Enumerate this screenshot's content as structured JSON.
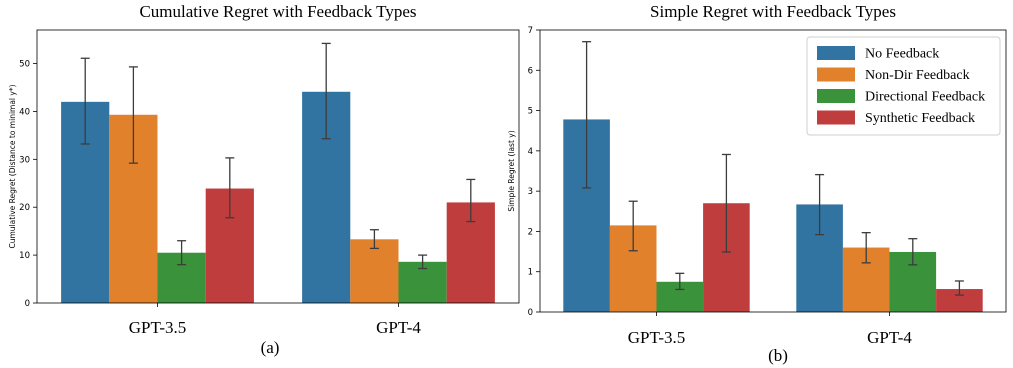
{
  "chart_data": [
    {
      "type": "bar",
      "title": "Cumulative Regret with Feedback Types",
      "xlabel": "",
      "ylabel": "Cumulative Regret (Distance to minimal y*)",
      "caption": "(a)",
      "categories": [
        "GPT-3.5",
        "GPT-4"
      ],
      "ylim": [
        0,
        57
      ],
      "yticks": [
        0,
        10,
        20,
        30,
        40,
        50
      ],
      "grid": false,
      "legend": "none",
      "series": [
        {
          "name": "No Feedback",
          "color": "#3274a1",
          "values": [
            42.0,
            44.1
          ],
          "err_low": [
            33.2,
            34.3
          ],
          "err_high": [
            51.1,
            54.2
          ]
        },
        {
          "name": "Non-Dir Feedback",
          "color": "#e1812c",
          "values": [
            39.3,
            13.3
          ],
          "err_low": [
            29.2,
            11.4
          ],
          "err_high": [
            49.3,
            15.3
          ]
        },
        {
          "name": "Directional Feedback",
          "color": "#3a923a",
          "values": [
            10.5,
            8.6
          ],
          "err_low": [
            8.0,
            7.2
          ],
          "err_high": [
            13.0,
            10.0
          ]
        },
        {
          "name": "Synthetic Feedback",
          "color": "#c03d3e",
          "values": [
            23.9,
            21.0
          ],
          "err_low": [
            17.8,
            17.0
          ],
          "err_high": [
            30.3,
            25.8
          ]
        }
      ]
    },
    {
      "type": "bar",
      "title": "Simple Regret with Feedback Types",
      "xlabel": "",
      "ylabel": "Simple Regret (last y)",
      "caption": "(b)",
      "categories": [
        "GPT-3.5",
        "GPT-4"
      ],
      "ylim": [
        0,
        7
      ],
      "yticks": [
        0,
        1,
        2,
        3,
        4,
        5,
        6,
        7
      ],
      "grid": false,
      "legend": "top-right",
      "series": [
        {
          "name": "No Feedback",
          "color": "#3274a1",
          "values": [
            4.78,
            2.67
          ],
          "err_low": [
            3.08,
            1.92
          ],
          "err_high": [
            6.71,
            3.41
          ]
        },
        {
          "name": "Non-Dir Feedback",
          "color": "#e1812c",
          "values": [
            2.15,
            1.6
          ],
          "err_low": [
            1.52,
            1.22
          ],
          "err_high": [
            2.75,
            1.97
          ]
        },
        {
          "name": "Directional Feedback",
          "color": "#3a923a",
          "values": [
            0.75,
            1.49
          ],
          "err_low": [
            0.56,
            1.17
          ],
          "err_high": [
            0.96,
            1.82
          ]
        },
        {
          "name": "Synthetic Feedback",
          "color": "#c03d3e",
          "values": [
            2.7,
            0.57
          ],
          "err_low": [
            1.49,
            0.42
          ],
          "err_high": [
            3.91,
            0.77
          ]
        }
      ]
    }
  ]
}
